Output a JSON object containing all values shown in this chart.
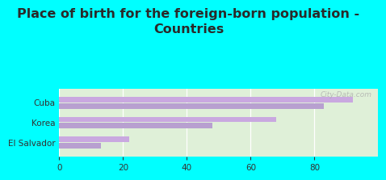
{
  "title": "Place of birth for the foreign-born population -\nCountries",
  "categories": [
    "El Salvador",
    "Korea",
    "Cuba"
  ],
  "bar1_values": [
    22,
    68,
    92
  ],
  "bar2_values": [
    13,
    48,
    83
  ],
  "bar1_color": "#c9a8e0",
  "bar2_color": "#b8a0d0",
  "background_outer": "#00ffff",
  "background_inner_top": "#e8f5e9",
  "background_inner_bottom": "#d0f0d0",
  "xlim": [
    0,
    100
  ],
  "xticks": [
    0,
    20,
    40,
    60,
    80
  ],
  "watermark": "City-Data.com",
  "title_fontsize": 11.5,
  "bar_height": 0.28
}
